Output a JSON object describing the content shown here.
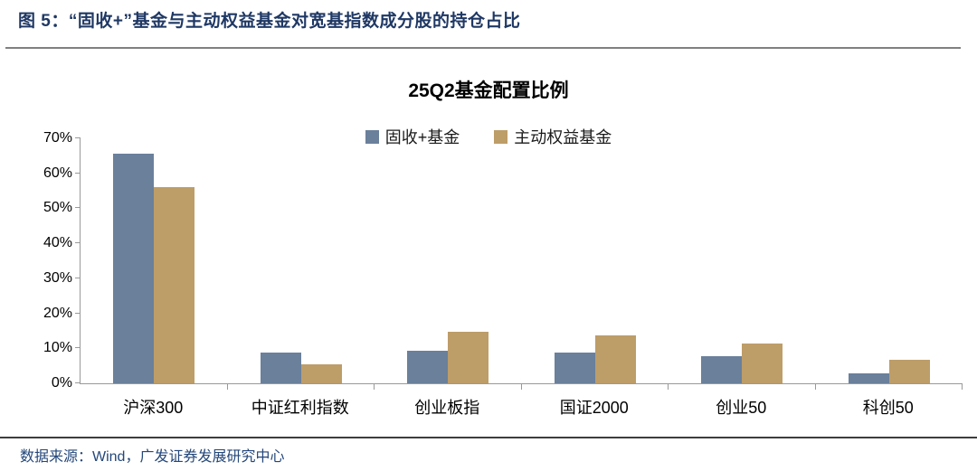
{
  "header": {
    "title": "图 5：“固收+”基金与主动权益基金对宽基指数成分股的持仓占比"
  },
  "footer": {
    "source": "数据来源：Wind，广发证券发展研究中心"
  },
  "chart_data": {
    "type": "bar",
    "title": "25Q2基金配置比例",
    "categories": [
      "沪深300",
      "中证红利指数",
      "创业板指",
      "国证2000",
      "创业50",
      "科创50"
    ],
    "series": [
      {
        "name": "固收+基金",
        "color": "#6A809B",
        "values": [
          65.7,
          8.7,
          9.3,
          8.7,
          7.8,
          2.9
        ]
      },
      {
        "name": "主动权益基金",
        "color": "#BD9D68",
        "values": [
          56.0,
          5.3,
          14.8,
          13.8,
          11.4,
          6.8
        ]
      }
    ],
    "xlabel": "",
    "ylabel": "",
    "ylim": [
      0,
      70
    ],
    "ytick_step": 10,
    "yticks": [
      "0%",
      "10%",
      "20%",
      "30%",
      "40%",
      "50%",
      "60%",
      "70%"
    ],
    "grid": false,
    "legend_position": "top-center",
    "colors": {
      "axis": "#999999",
      "title_text": "#000000",
      "header_text": "#1F3864",
      "source_text": "#24477A"
    }
  }
}
